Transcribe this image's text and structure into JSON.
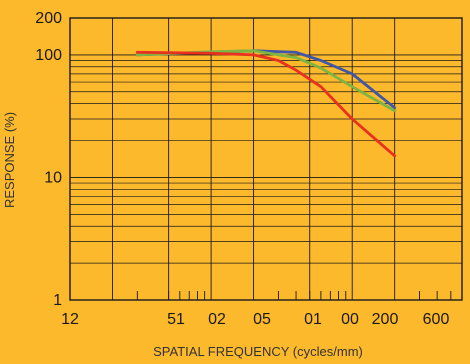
{
  "chart_data": {
    "type": "line",
    "xlabel": "SPATIAL FREQUENCY (cycles/mm)",
    "ylabel": "RESPONSE (%)",
    "x_scale": "log",
    "y_scale": "log",
    "xlim": [
      1,
      600
    ],
    "ylim": [
      1,
      200
    ],
    "grid": true,
    "x_ticklabels": [
      "12",
      "51",
      "02",
      "05",
      "01",
      "00",
      "200",
      "600"
    ],
    "y_ticklabels": [
      "200",
      "100",
      "10",
      "1"
    ],
    "x_minor_ticks": [
      3,
      5,
      6,
      7,
      8,
      9,
      30,
      40,
      50,
      60,
      70,
      80,
      90,
      300,
      400,
      500
    ],
    "y_minor_ticks": [
      2,
      3,
      4,
      5,
      6,
      7,
      8,
      9,
      20,
      30,
      40,
      50,
      60,
      70,
      80,
      90
    ],
    "x_vlines": [
      1,
      2,
      5,
      10,
      20,
      50,
      100,
      200,
      600
    ],
    "series": [
      {
        "color": "#3F57A8",
        "x": [
          3,
          10,
          20,
          40,
          60,
          100,
          200
        ],
        "y": [
          100,
          105,
          108,
          105,
          90,
          70,
          37
        ]
      },
      {
        "color": "#7DB442",
        "x": [
          3,
          10,
          20,
          40,
          60,
          100,
          200
        ],
        "y": [
          100,
          106,
          108,
          95,
          78,
          55,
          35
        ]
      },
      {
        "color": "#E8321F",
        "x": [
          3,
          10,
          20,
          30,
          40,
          60,
          100,
          200
        ],
        "y": [
          105,
          103,
          100,
          90,
          75,
          55,
          30,
          15
        ]
      }
    ]
  }
}
